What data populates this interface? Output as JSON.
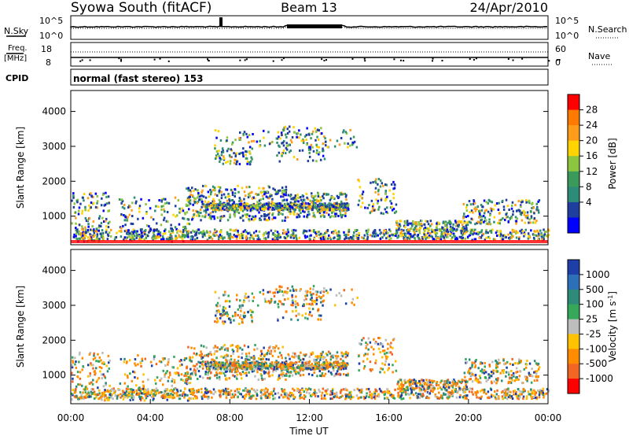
{
  "header": {
    "station": "Syowa South (fitACF)",
    "beam": "Beam 13",
    "date": "24/Apr/2010"
  },
  "strip_labels": {
    "nsky": "N.Sky",
    "nsearch": "N.Search",
    "freq_line1": "Freq.",
    "freq_line2": "[MHz]",
    "nave": "Nave",
    "cpid": "CPID",
    "cpid_value": "normal (fast stereo) 153",
    "noise_ticks": [
      "10^5",
      "10^0"
    ],
    "freq_ticks": [
      "18",
      "8"
    ],
    "nave_ticks": [
      "60",
      "0"
    ]
  },
  "chart_data": [
    {
      "type": "heatmap",
      "name": "power",
      "ylabel": "Slant Range [km]",
      "xlabel": "",
      "colorbar_label": "Power [dB]",
      "colorbar_ticks": [
        "28",
        "24",
        "20",
        "16",
        "12",
        "8",
        "4"
      ],
      "colorbar_colors": [
        "#ff0000",
        "#ff7a00",
        "#ff9c1a",
        "#ffd400",
        "#8cc63f",
        "#3a9a5a",
        "#2d8c78",
        "#1f3f9e",
        "#0000ff"
      ],
      "ylim": [
        180,
        4600
      ],
      "y_ticks": [
        "1000",
        "2000",
        "3000",
        "4000"
      ],
      "grid": false
    },
    {
      "type": "heatmap",
      "name": "velocity",
      "ylabel": "Slant Range [km]",
      "xlabel": "Time UT",
      "colorbar_label": "Velocity [m s^-1]",
      "colorbar_ticks": [
        "1000",
        "500",
        "100",
        "25",
        "-25",
        "-100",
        "-500",
        "-1000"
      ],
      "colorbar_colors": [
        "#1f3fa8",
        "#2d6fb8",
        "#2e8b7a",
        "#35a85a",
        "#bdbdbd",
        "#ffc200",
        "#ff8c00",
        "#f26522",
        "#ff0000"
      ],
      "ylim": [
        180,
        4600
      ],
      "y_ticks": [
        "1000",
        "2000",
        "3000",
        "4000"
      ],
      "x_ticks": [
        "00:00",
        "04:00",
        "08:00",
        "12:00",
        "16:00",
        "20:00",
        "00:00"
      ],
      "grid": false
    }
  ]
}
